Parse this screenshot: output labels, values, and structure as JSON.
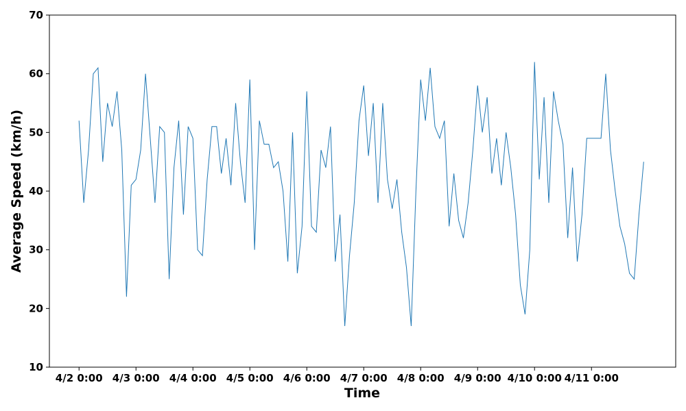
{
  "chart_data": {
    "type": "line",
    "xlabel": "Time",
    "ylabel": "Average Speed (km/h)",
    "xlim": [
      "4/1 11:30",
      "4/12 11:30"
    ],
    "xticks": [
      "4/2 0:00",
      "4/3 0:00",
      "4/4 0:00",
      "4/5 0:00",
      "4/6 0:00",
      "4/7 0:00",
      "4/8 0:00",
      "4/9 0:00",
      "4/10 0:00",
      "4/11 0:00"
    ],
    "ylim": [
      10,
      70
    ],
    "yticks": [
      10,
      20,
      30,
      40,
      50,
      60,
      70
    ],
    "x": [
      "4/2 0:00",
      "4/2 2:00",
      "4/2 4:00",
      "4/2 6:00",
      "4/2 8:00",
      "4/2 10:00",
      "4/2 12:00",
      "4/2 14:00",
      "4/2 16:00",
      "4/2 18:00",
      "4/2 20:00",
      "4/2 22:00",
      "4/3 0:00",
      "4/3 2:00",
      "4/3 4:00",
      "4/3 6:00",
      "4/3 8:00",
      "4/3 10:00",
      "4/3 12:00",
      "4/3 14:00",
      "4/3 16:00",
      "4/3 18:00",
      "4/3 20:00",
      "4/3 22:00",
      "4/4 0:00",
      "4/4 2:00",
      "4/4 4:00",
      "4/4 6:00",
      "4/4 8:00",
      "4/4 10:00",
      "4/4 12:00",
      "4/4 14:00",
      "4/4 16:00",
      "4/4 18:00",
      "4/4 20:00",
      "4/4 22:00",
      "4/5 0:00",
      "4/5 2:00",
      "4/5 4:00",
      "4/5 6:00",
      "4/5 8:00",
      "4/5 10:00",
      "4/5 12:00",
      "4/5 14:00",
      "4/5 16:00",
      "4/5 18:00",
      "4/5 20:00",
      "4/5 22:00",
      "4/6 0:00",
      "4/6 2:00",
      "4/6 4:00",
      "4/6 6:00",
      "4/6 8:00",
      "4/6 10:00",
      "4/6 12:00",
      "4/6 14:00",
      "4/6 16:00",
      "4/6 18:00",
      "4/6 20:00",
      "4/6 22:00",
      "4/7 0:00",
      "4/7 2:00",
      "4/7 4:00",
      "4/7 6:00",
      "4/7 8:00",
      "4/7 10:00",
      "4/7 12:00",
      "4/7 14:00",
      "4/7 16:00",
      "4/7 18:00",
      "4/7 20:00",
      "4/7 22:00",
      "4/8 0:00",
      "4/8 2:00",
      "4/8 4:00",
      "4/8 6:00",
      "4/8 8:00",
      "4/8 10:00",
      "4/8 12:00",
      "4/8 14:00",
      "4/8 16:00",
      "4/8 18:00",
      "4/8 20:00",
      "4/8 22:00",
      "4/9 0:00",
      "4/9 2:00",
      "4/9 4:00",
      "4/9 6:00",
      "4/9 8:00",
      "4/9 10:00",
      "4/9 12:00",
      "4/9 14:00",
      "4/9 16:00",
      "4/9 18:00",
      "4/9 20:00",
      "4/9 22:00",
      "4/10 0:00",
      "4/10 2:00",
      "4/10 4:00",
      "4/10 6:00",
      "4/10 8:00",
      "4/10 10:00",
      "4/10 12:00",
      "4/10 14:00",
      "4/10 16:00",
      "4/10 18:00",
      "4/10 20:00",
      "4/10 22:00",
      "4/11 0:00",
      "4/11 2:00",
      "4/11 4:00",
      "4/11 6:00",
      "4/11 8:00",
      "4/11 10:00",
      "4/11 12:00",
      "4/11 14:00",
      "4/11 16:00",
      "4/11 18:00",
      "4/11 20:00",
      "4/11 22:00"
    ],
    "series": [
      {
        "color": "#1f77b4",
        "values": [
          52,
          38,
          47,
          60,
          61,
          45,
          55,
          51,
          57,
          47,
          22,
          41,
          42,
          47,
          60,
          49,
          38,
          51,
          50,
          25,
          44,
          52,
          36,
          51,
          49,
          30,
          29,
          42,
          51,
          51,
          43,
          49,
          41,
          55,
          45,
          38,
          59,
          30,
          52,
          48,
          48,
          44,
          45,
          40,
          28,
          50,
          26,
          34,
          57,
          34,
          33,
          47,
          44,
          51,
          28,
          36,
          17,
          29,
          38,
          52,
          58,
          46,
          55,
          38,
          55,
          42,
          37,
          42,
          33,
          27,
          17,
          40,
          59,
          52,
          61,
          51,
          49,
          52,
          34,
          43,
          35,
          32,
          38,
          47,
          58,
          50,
          56,
          43,
          49,
          41,
          50,
          44,
          36,
          24,
          19,
          30,
          62,
          42,
          56,
          38,
          57,
          52,
          48,
          32,
          44,
          28,
          36,
          49,
          49,
          49,
          49,
          60,
          47,
          40,
          34,
          31,
          26,
          25,
          36,
          45
        ]
      }
    ]
  }
}
